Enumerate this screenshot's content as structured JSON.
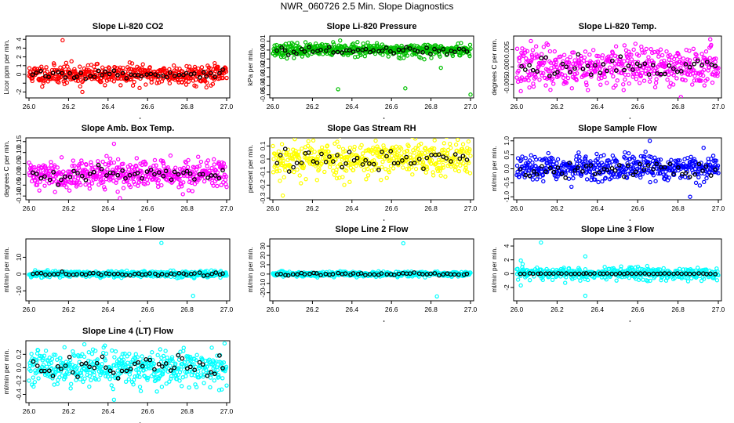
{
  "page_title": "NWR_060726  2.5 Min. Slope Diagnostics",
  "chart_data": [
    {
      "type": "scatter",
      "title": "Slope Li-820 CO2",
      "ylabel": "Licor ppm per min.",
      "color": "#ff0000",
      "xlim": [
        26.0,
        27.0
      ],
      "ylim": [
        -2.5,
        4.2
      ],
      "xticks": [
        "26.0",
        "26.2",
        "26.4",
        "26.6",
        "26.8",
        "27.0"
      ],
      "yticks": [
        -2,
        -1,
        0,
        1,
        2,
        3,
        4
      ],
      "ytick_labels": [
        "-2",
        "",
        "0",
        "1",
        "2",
        "3",
        "4"
      ],
      "sigma": 0.55,
      "black_sigma": 0.25,
      "seed": 11,
      "outliers": [
        [
          26.17,
          3.9
        ],
        [
          26.27,
          -2.0
        ],
        [
          26.93,
          -1.1
        ]
      ]
    },
    {
      "type": "scatter",
      "title": "Slope Li-820 Pressure",
      "ylabel": "kPa per min.",
      "color": "#00c000",
      "xlim": [
        26.0,
        27.0
      ],
      "ylim": [
        -0.052,
        0.014
      ],
      "xticks": [
        "26.0",
        "26.2",
        "26.4",
        "26.6",
        "26.8",
        "27.0"
      ],
      "yticks": [
        -0.05,
        -0.04,
        -0.03,
        -0.02,
        -0.01,
        0.0,
        0.01
      ],
      "ytick_labels": [
        "-0.05",
        "-0.04",
        "-0.03",
        "-0.02",
        "-0.01",
        "0.00",
        "0.01"
      ],
      "sigma": 0.0035,
      "black_sigma": 0.002,
      "seed": 23,
      "outliers": [
        [
          26.33,
          -0.044
        ],
        [
          26.67,
          -0.043
        ],
        [
          27.0,
          -0.05
        ],
        [
          26.85,
          -0.02
        ]
      ]
    },
    {
      "type": "scatter",
      "title": "Slope Li-820 Temp.",
      "ylabel": "degrees C per min.",
      "color": "#ff00ff",
      "xlim": [
        26.0,
        27.0
      ],
      "ylim": [
        -0.0085,
        0.0085
      ],
      "xticks": [
        "26.0",
        "26.2",
        "26.4",
        "26.6",
        "26.8",
        "27.0"
      ],
      "yticks": [
        -0.005,
        0.0,
        0.005
      ],
      "ytick_labels": [
        "-0.005",
        "0.000",
        "0.005"
      ],
      "sigma": 0.0028,
      "black_sigma": 0.0012,
      "seed": 37,
      "outliers": [
        [
          26.07,
          0.0075
        ],
        [
          26.96,
          0.008
        ],
        [
          26.02,
          -0.007
        ]
      ]
    },
    {
      "type": "scatter",
      "title": "Slope Amb. Box Temp.",
      "ylabel": "degrees C per min.",
      "color": "#ff00ff",
      "xlim": [
        26.0,
        27.0
      ],
      "ylim": [
        -0.11,
        0.16
      ],
      "xticks": [
        "26.0",
        "26.2",
        "26.4",
        "26.6",
        "26.8",
        "27.0"
      ],
      "yticks": [
        -0.1,
        -0.05,
        0.0,
        0.05,
        0.1,
        0.15
      ],
      "ytick_labels": [
        "-0.10",
        "-0.05",
        "0.00",
        "0.05",
        "0.10",
        "0.15"
      ],
      "sigma": 0.032,
      "black_sigma": 0.015,
      "seed": 41,
      "outliers": [
        [
          26.43,
          0.14
        ],
        [
          26.46,
          -0.11
        ]
      ]
    },
    {
      "type": "scatter",
      "title": "Slope Gas Stream RH",
      "ylabel": "percent per min.",
      "color": "#ffff00",
      "xlim": [
        26.0,
        27.0
      ],
      "ylim": [
        -0.3,
        0.15
      ],
      "xticks": [
        "26.0",
        "26.2",
        "26.4",
        "26.6",
        "26.8",
        "27.0"
      ],
      "yticks": [
        -0.3,
        -0.2,
        -0.1,
        0.0,
        0.1
      ],
      "ytick_labels": [
        "-0.3",
        "-0.2",
        "-0.1",
        "0.0",
        "0.1"
      ],
      "sigma": 0.07,
      "black_sigma": 0.045,
      "seed": 53,
      "outliers": [
        [
          26.05,
          -0.28
        ],
        [
          26.52,
          0.14
        ]
      ]
    },
    {
      "type": "scatter",
      "title": "Slope Sample Flow",
      "ylabel": "ml/min per min.",
      "color": "#0000ff",
      "xlim": [
        26.0,
        27.0
      ],
      "ylim": [
        -1.05,
        1.05
      ],
      "xticks": [
        "26.0",
        "26.2",
        "26.4",
        "26.6",
        "26.8",
        "27.0"
      ],
      "yticks": [
        -1.0,
        -0.5,
        0.0,
        0.5,
        1.0
      ],
      "ytick_labels": [
        "-1.0",
        "-0.5",
        "0.0",
        "0.5",
        "1.0"
      ],
      "sigma": 0.22,
      "black_sigma": 0.13,
      "seed": 67,
      "outliers": [
        [
          26.66,
          1.0
        ],
        [
          26.86,
          -1.0
        ]
      ]
    },
    {
      "type": "scatter",
      "title": "Slope Line 1 Flow",
      "ylabel": "ml/min per min.",
      "color": "#00ffff",
      "xlim": [
        26.0,
        27.0
      ],
      "ylim": [
        -15,
        20
      ],
      "xticks": [
        "26.0",
        "26.2",
        "26.4",
        "26.6",
        "26.8",
        "27.0"
      ],
      "yticks": [
        -10,
        0,
        10
      ],
      "ytick_labels": [
        "-10",
        "0",
        "10"
      ],
      "sigma": 1.0,
      "black_sigma": 0.6,
      "seed": 71,
      "outliers": [
        [
          26.67,
          18.5
        ],
        [
          26.83,
          -13.0
        ]
      ]
    },
    {
      "type": "scatter",
      "title": "Slope Line 2 Flow",
      "ylabel": "ml/min per min.",
      "color": "#00ffff",
      "xlim": [
        26.0,
        27.0
      ],
      "ylim": [
        -27,
        36
      ],
      "xticks": [
        "26.0",
        "26.2",
        "26.4",
        "26.6",
        "26.8",
        "27.0"
      ],
      "yticks": [
        -20,
        -10,
        0,
        10,
        20,
        30
      ],
      "ytick_labels": [
        "-20",
        "-10",
        "0",
        "10",
        "20",
        "30"
      ],
      "sigma": 1.3,
      "black_sigma": 0.8,
      "seed": 83,
      "outliers": [
        [
          26.66,
          33.0
        ],
        [
          26.83,
          -24.0
        ]
      ]
    },
    {
      "type": "scatter",
      "title": "Slope Line 3 Flow",
      "ylabel": "ml/min per min.",
      "color": "#00ffff",
      "xlim": [
        26.0,
        27.0
      ],
      "ylim": [
        -3.7,
        4.8
      ],
      "xticks": [
        "26.0",
        "26.2",
        "26.4",
        "26.6",
        "26.8",
        "27.0"
      ],
      "yticks": [
        -2,
        0,
        2,
        4
      ],
      "ytick_labels": [
        "-2",
        "0",
        "2",
        "4"
      ],
      "sigma": 0.45,
      "black_sigma": 0.03,
      "seed": 97,
      "outliers": [
        [
          26.12,
          4.5
        ],
        [
          26.34,
          2.5
        ],
        [
          26.34,
          -3.2
        ],
        [
          26.02,
          1.9
        ],
        [
          26.02,
          -1.7
        ],
        [
          26.85,
          -1.1
        ]
      ]
    },
    {
      "type": "scatter",
      "title": "Slope Line 4 (LT) Flow",
      "ylabel": "ml/min per min.",
      "color": "#00ffff",
      "xlim": [
        26.0,
        27.0
      ],
      "ylim": [
        -0.5,
        0.38
      ],
      "xticks": [
        "26.0",
        "26.2",
        "26.4",
        "26.6",
        "26.8",
        "27.0"
      ],
      "yticks": [
        -0.4,
        -0.2,
        0.0,
        0.2
      ],
      "ytick_labels": [
        "-0.4",
        "-0.2",
        "0.0",
        "0.2"
      ],
      "sigma": 0.13,
      "black_sigma": 0.1,
      "seed": 101,
      "outliers": [
        [
          26.28,
          0.35
        ],
        [
          26.43,
          -0.48
        ]
      ]
    }
  ]
}
